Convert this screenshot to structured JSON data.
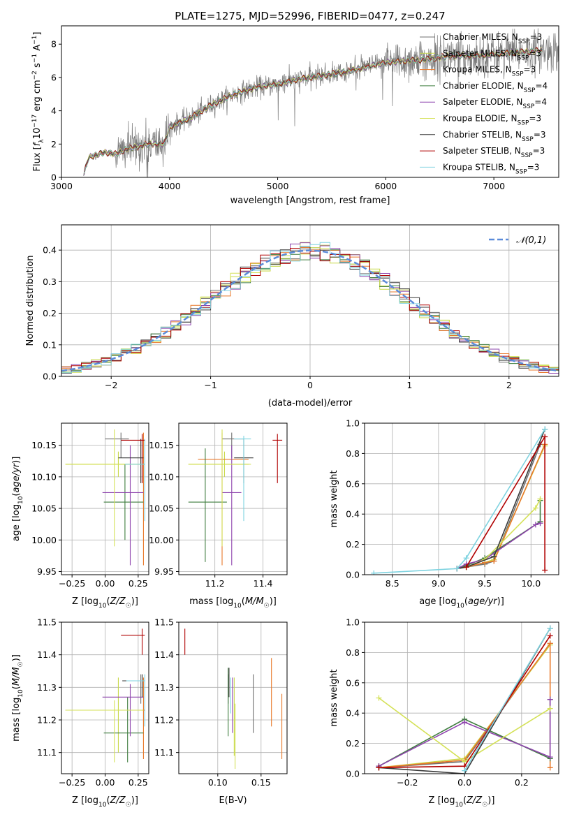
{
  "figure": {
    "title": "PLATE=1275, MJD=52996, FIBERID=0477, z=0.247"
  },
  "series_colors": [
    "#6f6f6f",
    "#c8d94a",
    "#e8782a",
    "#3f7d3f",
    "#8e44ad",
    "#d4e157",
    "#3a3a3a",
    "#b00000",
    "#7fd3e0"
  ],
  "legend_top": [
    {
      "base": "Chabrier MILES, N",
      "sub": "SSP",
      "tail": "=3"
    },
    {
      "base": "Salpeter MILES, N",
      "sub": "SSP",
      "tail": "=3"
    },
    {
      "base": "Kroupa MILES, N",
      "sub": "SSP",
      "tail": "=3"
    },
    {
      "base": "Chabrier ELODIE, N",
      "sub": "SSP",
      "tail": "=4"
    },
    {
      "base": "Salpeter ELODIE, N",
      "sub": "SSP",
      "tail": "=4"
    },
    {
      "base": "Kroupa ELODIE, N",
      "sub": "SSP",
      "tail": "=3"
    },
    {
      "base": "Chabrier STELIB, N",
      "sub": "SSP",
      "tail": "=3"
    },
    {
      "base": "Salpeter STELIB, N",
      "sub": "SSP",
      "tail": "=3"
    },
    {
      "base": "Kroupa STELIB, N",
      "sub": "SSP",
      "tail": "=3"
    }
  ],
  "chart_data": [
    {
      "id": "spectrum",
      "type": "line",
      "xlabel": "wavelength [Angstrom, rest frame]",
      "ylabel": "Flux [f_λ10^-17 erg cm^-2 s^-1 A^-1]",
      "xlim": [
        3000,
        7600
      ],
      "ylim": [
        0,
        9.1
      ],
      "xticks": [
        3000,
        4000,
        5000,
        6000,
        7000
      ],
      "yticks": [
        0,
        2,
        4,
        6,
        8
      ],
      "grid": false,
      "legend": "top-right",
      "model_curve": {
        "x": [
          3200,
          3250,
          3400,
          3500,
          3600,
          3800,
          3950,
          4000,
          4200,
          4400,
          4600,
          4800,
          5000,
          5200,
          5400,
          5600,
          5800,
          6000,
          6200,
          6400,
          6600,
          6800,
          7000,
          7200,
          7400
        ],
        "y": [
          0.0,
          1.2,
          1.5,
          1.4,
          1.7,
          2.0,
          2.0,
          3.0,
          3.6,
          4.4,
          5.0,
          5.4,
          5.6,
          5.9,
          6.1,
          6.3,
          6.6,
          6.9,
          7.0,
          7.1,
          7.3,
          7.3,
          7.4,
          7.5,
          7.6
        ]
      }
    },
    {
      "id": "residuals",
      "type": "histogram",
      "xlabel": "(data-model)/error",
      "ylabel": "Normed distribution",
      "xlim": [
        -2.5,
        2.5
      ],
      "ylim": [
        0,
        0.48
      ],
      "xticks": [
        -2,
        -1,
        0,
        1,
        2
      ],
      "yticks": [
        0.0,
        0.1,
        0.2,
        0.3,
        0.4
      ],
      "grid": true,
      "legend": "top-right",
      "reference": {
        "name": "𝒩(0,1)",
        "mean": 0,
        "std": 1
      }
    },
    {
      "id": "age_vs_Z",
      "type": "errorbar",
      "xlabel": "Z [log10(Z/Z☉)]",
      "ylabel": "age  [log10(age/yr)]",
      "xlim": [
        -0.33,
        0.33
      ],
      "ylim": [
        9.945,
        10.185
      ],
      "xticks": [
        -0.25,
        0.0,
        0.25
      ],
      "yticks": [
        9.95,
        10.0,
        10.05,
        10.1,
        10.15
      ],
      "grid": true,
      "points": [
        {
          "s": 0,
          "x": 0.12,
          "y": 10.16,
          "xe": [
            0.0,
            0.18
          ],
          "ye": [
            10.13,
            10.17
          ]
        },
        {
          "s": 1,
          "x": 0.1,
          "y": 10.12,
          "xe": [
            -0.3,
            0.29
          ],
          "ye": [
            10.1,
            10.14
          ]
        },
        {
          "s": 2,
          "x": 0.29,
          "y": 10.12,
          "xe": [
            0.28,
            0.3
          ],
          "ye": [
            9.96,
            10.17
          ]
        },
        {
          "s": 3,
          "x": 0.15,
          "y": 10.06,
          "xe": [
            -0.01,
            0.29
          ],
          "ye": [
            10.0,
            10.12
          ]
        },
        {
          "s": 4,
          "x": 0.19,
          "y": 10.075,
          "xe": [
            -0.02,
            0.29
          ],
          "ye": [
            9.96,
            10.15
          ]
        },
        {
          "s": 5,
          "x": 0.07,
          "y": 10.12,
          "xe": [
            -0.3,
            0.29
          ],
          "ye": [
            9.99,
            10.175
          ]
        },
        {
          "s": 6,
          "x": 0.27,
          "y": 10.13,
          "xe": [
            0.1,
            0.29
          ],
          "ye": [
            10.09,
            10.16
          ]
        },
        {
          "s": 7,
          "x": 0.28,
          "y": 10.158,
          "xe": [
            0.12,
            0.3
          ],
          "ye": [
            10.09,
            10.168
          ]
        },
        {
          "s": 8,
          "x": 0.3,
          "y": 10.12,
          "xe": [
            0.15,
            0.3
          ],
          "ye": [
            10.03,
            10.16
          ]
        }
      ]
    },
    {
      "id": "age_vs_mass",
      "type": "errorbar",
      "xlabel": "mass [log10(M/M☉)]",
      "ylabel": "",
      "xlim": [
        11.05,
        11.5
      ],
      "ylim": [
        9.945,
        10.185
      ],
      "xticks": [
        11.2,
        11.4
      ],
      "yticks": [
        9.95,
        10.0,
        10.05,
        10.1,
        10.15
      ],
      "grid": true,
      "points": [
        {
          "s": 0,
          "x": 11.27,
          "y": 10.16,
          "xe": [
            11.23,
            11.32
          ],
          "ye": [
            10.13,
            10.17
          ]
        },
        {
          "s": 1,
          "x": 11.24,
          "y": 10.12,
          "xe": [
            11.09,
            11.34
          ],
          "ye": [
            10.1,
            10.14
          ]
        },
        {
          "s": 2,
          "x": 11.23,
          "y": 10.128,
          "xe": [
            11.13,
            11.34
          ],
          "ye": [
            9.96,
            10.17
          ]
        },
        {
          "s": 3,
          "x": 11.16,
          "y": 10.06,
          "xe": [
            11.09,
            11.25
          ],
          "ye": [
            9.965,
            10.145
          ]
        },
        {
          "s": 4,
          "x": 11.27,
          "y": 10.075,
          "xe": [
            11.23,
            11.31
          ],
          "ye": [
            9.96,
            10.15
          ]
        },
        {
          "s": 5,
          "x": 11.23,
          "y": 10.12,
          "xe": [
            11.09,
            11.35
          ],
          "ye": [
            9.99,
            10.175
          ]
        },
        {
          "s": 6,
          "x": 11.32,
          "y": 10.13,
          "xe": [
            11.28,
            11.36
          ],
          "ye": [
            10.09,
            10.16
          ]
        },
        {
          "s": 7,
          "x": 11.46,
          "y": 10.158,
          "xe": [
            11.44,
            11.48
          ],
          "ye": [
            10.09,
            10.168
          ]
        },
        {
          "s": 8,
          "x": 11.32,
          "y": 10.16,
          "xe": [
            11.28,
            11.35
          ],
          "ye": [
            10.03,
            10.165
          ]
        }
      ]
    },
    {
      "id": "weight_vs_age",
      "type": "line",
      "xlabel": "age  [log10(age/yr)]",
      "ylabel": "mass weight",
      "xlim": [
        8.2,
        10.3
      ],
      "ylim": [
        0,
        1
      ],
      "xticks": [
        8.5,
        9.0,
        9.5,
        10.0
      ],
      "yticks": [
        0.0,
        0.2,
        0.4,
        0.6,
        0.8,
        1.0
      ],
      "grid": true,
      "series": [
        {
          "s": 0,
          "x": [
            9.2,
            9.3,
            9.5,
            9.6,
            10.1
          ],
          "y": [
            0.04,
            0.05,
            0.07,
            0.09,
            0.86
          ]
        },
        {
          "s": 1,
          "x": [
            9.2,
            9.3,
            9.5,
            9.6,
            10.15
          ],
          "y": [
            0.04,
            0.05,
            0.08,
            0.1,
            0.85
          ]
        },
        {
          "s": 2,
          "x": [
            9.2,
            9.3,
            9.5,
            9.6,
            10.15
          ],
          "y": [
            0.04,
            0.05,
            0.08,
            0.09,
            0.86
          ]
        },
        {
          "s": 3,
          "x": [
            9.2,
            9.3,
            9.5,
            10.1,
            10.1
          ],
          "y": [
            0.04,
            0.06,
            0.11,
            0.35,
            0.49
          ]
        },
        {
          "s": 4,
          "x": [
            9.2,
            9.3,
            9.5,
            10.05,
            10.1
          ],
          "y": [
            0.04,
            0.07,
            0.1,
            0.33,
            0.34
          ]
        },
        {
          "s": 5,
          "x": [
            9.3,
            9.5,
            10.05,
            10.1
          ],
          "y": [
            0.05,
            0.1,
            0.44,
            0.5
          ]
        },
        {
          "s": 6,
          "x": [
            9.2,
            9.3,
            9.6,
            10.15
          ],
          "y": [
            0.04,
            0.05,
            0.12,
            0.96
          ]
        },
        {
          "s": 7,
          "x": [
            9.3,
            10.15,
            10.15
          ],
          "y": [
            0.05,
            0.91,
            0.03
          ]
        },
        {
          "s": 8,
          "x": [
            8.3,
            9.2,
            9.3,
            10.15
          ],
          "y": [
            0.01,
            0.04,
            0.11,
            0.96
          ]
        }
      ]
    },
    {
      "id": "mass_vs_Z",
      "type": "errorbar",
      "xlabel": "Z [log10(Z/Z☉)]",
      "ylabel": "mass [log10(M/M☉)]",
      "xlim": [
        -0.33,
        0.33
      ],
      "ylim": [
        11.035,
        11.5
      ],
      "xticks": [
        -0.25,
        0.0,
        0.25
      ],
      "yticks": [
        11.1,
        11.2,
        11.3,
        11.4,
        11.5
      ],
      "grid": true,
      "points": [
        {
          "s": 0,
          "x": 0.27,
          "y": 11.32,
          "xe": [
            0.14,
            0.3
          ],
          "ye": [
            11.25,
            11.34
          ]
        },
        {
          "s": 1,
          "x": 0.1,
          "y": 11.23,
          "xe": [
            -0.3,
            0.29
          ],
          "ye": [
            11.1,
            11.33
          ]
        },
        {
          "s": 2,
          "x": 0.29,
          "y": 11.23,
          "xe": [
            0.28,
            0.3
          ],
          "ye": [
            11.08,
            11.33
          ]
        },
        {
          "s": 3,
          "x": 0.17,
          "y": 11.16,
          "xe": [
            -0.01,
            0.29
          ],
          "ye": [
            11.07,
            11.27
          ]
        },
        {
          "s": 4,
          "x": 0.19,
          "y": 11.27,
          "xe": [
            -0.02,
            0.29
          ],
          "ye": [
            11.15,
            11.31
          ]
        },
        {
          "s": 5,
          "x": 0.07,
          "y": 11.23,
          "xe": [
            -0.3,
            0.29
          ],
          "ye": [
            11.07,
            11.26
          ]
        },
        {
          "s": 6,
          "x": 0.28,
          "y": 11.32,
          "xe": [
            0.13,
            0.3
          ],
          "ye": [
            11.27,
            11.34
          ]
        },
        {
          "s": 7,
          "x": 0.28,
          "y": 11.46,
          "xe": [
            0.12,
            0.3
          ],
          "ye": [
            11.4,
            11.48
          ]
        },
        {
          "s": 8,
          "x": 0.3,
          "y": 11.32,
          "xe": [
            0.16,
            0.3
          ],
          "ye": [
            11.18,
            11.34
          ]
        }
      ]
    },
    {
      "id": "mass_vs_ebv",
      "type": "errorbar",
      "xlabel": "E(B-V)",
      "ylabel": "",
      "xlim": [
        0.055,
        0.18
      ],
      "ylim": [
        11.035,
        11.5
      ],
      "xticks": [
        0.1,
        0.15
      ],
      "yticks": [
        11.1,
        11.2,
        11.3,
        11.4,
        11.5
      ],
      "grid": true,
      "points": [
        {
          "s": 0,
          "x": 0.112,
          "y": 11.32,
          "ye": [
            11.25,
            11.34
          ]
        },
        {
          "s": 1,
          "x": 0.119,
          "y": 11.23,
          "ye": [
            11.09,
            11.33
          ]
        },
        {
          "s": 2,
          "x": 0.174,
          "y": 11.23,
          "ye": [
            11.08,
            11.28
          ]
        },
        {
          "s": 3,
          "x": 0.112,
          "y": 11.3,
          "ye": [
            11.15,
            11.36
          ]
        },
        {
          "s": 4,
          "x": 0.117,
          "y": 11.27,
          "ye": [
            11.16,
            11.33
          ]
        },
        {
          "s": 5,
          "x": 0.12,
          "y": 11.17,
          "ye": [
            11.05,
            11.25
          ]
        },
        {
          "s": 6,
          "x": 0.113,
          "y": 11.3,
          "ye": [
            11.27,
            11.36
          ]
        },
        {
          "s": 7,
          "x": 0.062,
          "y": 11.46,
          "ye": [
            11.4,
            11.48
          ]
        },
        {
          "s": 8,
          "x": 0.115,
          "y": 11.3,
          "ye": [
            11.22,
            11.33
          ]
        },
        {
          "s": 2,
          "x": 0.162,
          "y": 11.29,
          "ye": [
            11.18,
            11.39
          ]
        },
        {
          "s": 0,
          "x": 0.141,
          "y": 11.25,
          "ye": [
            11.16,
            11.34
          ]
        }
      ]
    },
    {
      "id": "weight_vs_Z",
      "type": "line",
      "xlabel": "Z [log10(Z/Z☉)]",
      "ylabel": "mass weight",
      "xlim": [
        -0.35,
        0.33
      ],
      "ylim": [
        0,
        1
      ],
      "xticks": [
        -0.2,
        0.0,
        0.2
      ],
      "yticks": [
        0.0,
        0.2,
        0.4,
        0.6,
        0.8,
        1.0
      ],
      "grid": true,
      "series": [
        {
          "s": 0,
          "x": [
            -0.3,
            0.0,
            0.3
          ],
          "y": [
            0.04,
            0.08,
            0.86
          ]
        },
        {
          "s": 1,
          "x": [
            -0.3,
            0.0,
            0.3
          ],
          "y": [
            0.04,
            0.1,
            0.85
          ]
        },
        {
          "s": 2,
          "x": [
            -0.3,
            0.0,
            0.3,
            0.3
          ],
          "y": [
            0.04,
            0.09,
            0.86,
            0.04
          ]
        },
        {
          "s": 3,
          "x": [
            -0.3,
            0.0,
            0.3,
            0.3
          ],
          "y": [
            0.05,
            0.36,
            0.1,
            0.49
          ]
        },
        {
          "s": 4,
          "x": [
            -0.3,
            0.0,
            0.3,
            0.3
          ],
          "y": [
            0.05,
            0.34,
            0.11,
            0.49
          ]
        },
        {
          "s": 5,
          "x": [
            -0.3,
            0.0,
            0.3
          ],
          "y": [
            0.5,
            0.08,
            0.43
          ]
        },
        {
          "s": 6,
          "x": [
            -0.3,
            0.0,
            0.3
          ],
          "y": [
            0.04,
            0.0,
            0.96
          ]
        },
        {
          "s": 7,
          "x": [
            -0.3,
            0.0,
            0.3
          ],
          "y": [
            0.04,
            0.05,
            0.91
          ]
        },
        {
          "s": 8,
          "x": [
            0.0,
            0.3
          ],
          "y": [
            0.02,
            0.96
          ]
        }
      ]
    }
  ]
}
